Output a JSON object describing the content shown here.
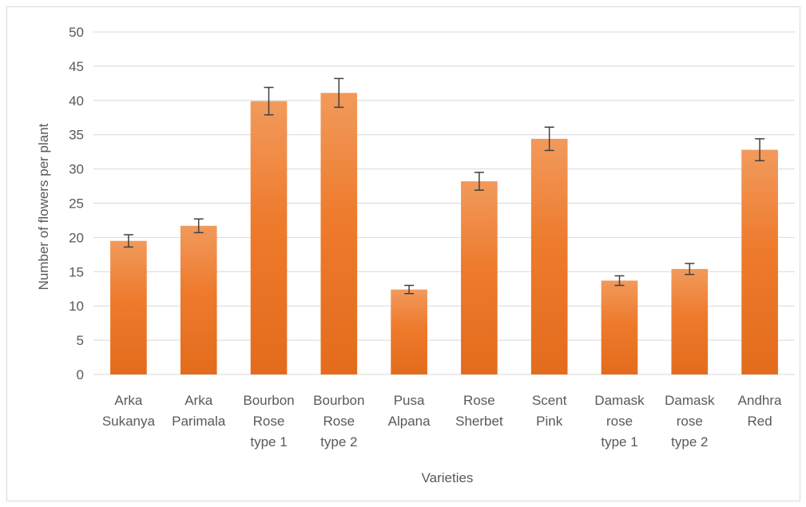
{
  "chart_data": {
    "type": "bar",
    "title": "",
    "xlabel": "Varieties",
    "ylabel": "Number of flowers per plant",
    "ylim": [
      0,
      50
    ],
    "yticks": [
      0,
      5,
      10,
      15,
      20,
      25,
      30,
      35,
      40,
      45,
      50
    ],
    "grid": true,
    "legend": "none",
    "categories": [
      [
        "Arka",
        "Sukanya"
      ],
      [
        "Arka",
        "Parimala"
      ],
      [
        "Bourbon",
        "Rose",
        "type 1"
      ],
      [
        "Bourbon",
        "Rose",
        "type 2"
      ],
      [
        "Pusa",
        "Alpana"
      ],
      [
        "Rose",
        "Sherbet"
      ],
      [
        "Scent",
        "Pink"
      ],
      [
        "Damask",
        "rose",
        "type 1"
      ],
      [
        "Damask",
        "rose",
        "type 2"
      ],
      [
        "Andhra",
        "Red"
      ]
    ],
    "values": [
      19.5,
      21.7,
      39.9,
      41.1,
      12.4,
      28.2,
      34.4,
      13.7,
      15.4,
      32.8
    ],
    "errors": [
      0.9,
      1.0,
      2.0,
      2.1,
      0.6,
      1.3,
      1.7,
      0.7,
      0.8,
      1.6
    ],
    "colors": {
      "bar_top": "#f19a5c",
      "bar_mid": "#ee7a2c",
      "bar_bottom": "#e36c1c",
      "grid": "#d9d9d9",
      "error_bar": "#404040",
      "text": "#595959"
    }
  }
}
